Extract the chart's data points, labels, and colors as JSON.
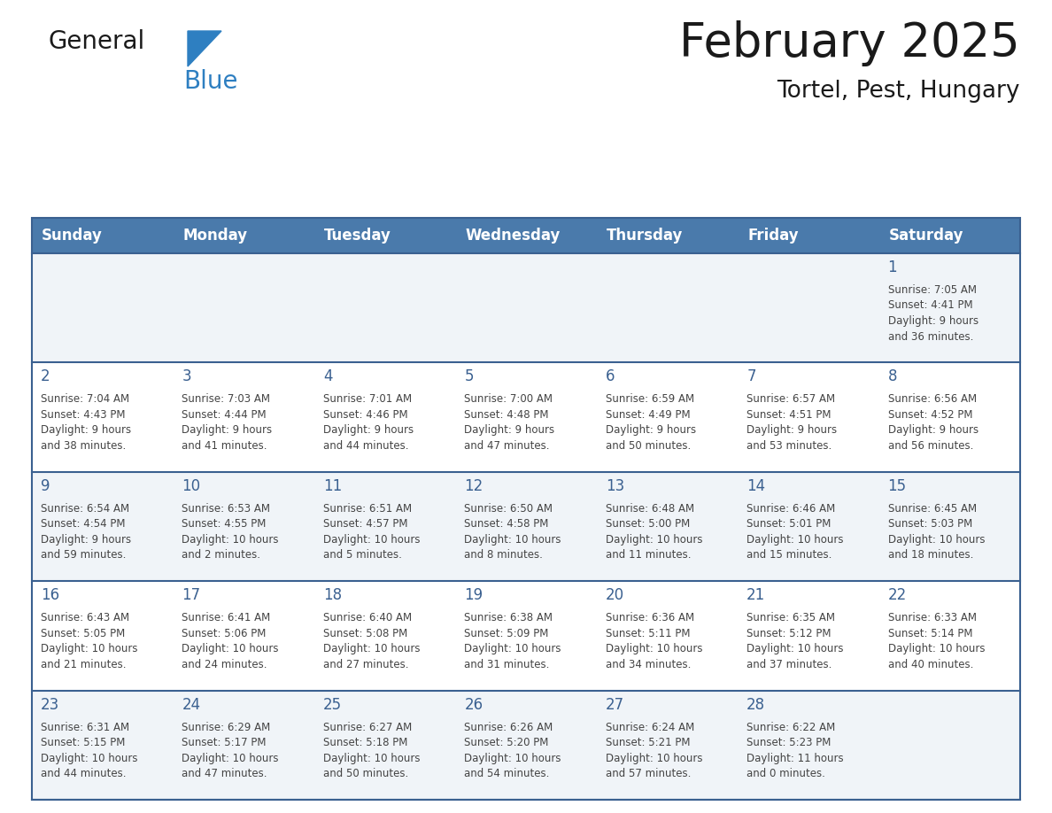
{
  "title": "February 2025",
  "subtitle": "Tortel, Pest, Hungary",
  "header_bg": "#4a7aab",
  "header_text_color": "#ffffff",
  "day_names": [
    "Sunday",
    "Monday",
    "Tuesday",
    "Wednesday",
    "Thursday",
    "Friday",
    "Saturday"
  ],
  "row_bg_light": "#f0f4f8",
  "row_bg_white": "#ffffff",
  "cell_border_color": "#3a6090",
  "day_number_color": "#3a6090",
  "text_color": "#444444",
  "logo_black": "#1a1a1a",
  "logo_blue": "#2e7fc1",
  "logo_triangle_color": "#2e7fc1",
  "weeks": [
    [
      {
        "day": null,
        "info": null
      },
      {
        "day": null,
        "info": null
      },
      {
        "day": null,
        "info": null
      },
      {
        "day": null,
        "info": null
      },
      {
        "day": null,
        "info": null
      },
      {
        "day": null,
        "info": null
      },
      {
        "day": 1,
        "info": "Sunrise: 7:05 AM\nSunset: 4:41 PM\nDaylight: 9 hours\nand 36 minutes."
      }
    ],
    [
      {
        "day": 2,
        "info": "Sunrise: 7:04 AM\nSunset: 4:43 PM\nDaylight: 9 hours\nand 38 minutes."
      },
      {
        "day": 3,
        "info": "Sunrise: 7:03 AM\nSunset: 4:44 PM\nDaylight: 9 hours\nand 41 minutes."
      },
      {
        "day": 4,
        "info": "Sunrise: 7:01 AM\nSunset: 4:46 PM\nDaylight: 9 hours\nand 44 minutes."
      },
      {
        "day": 5,
        "info": "Sunrise: 7:00 AM\nSunset: 4:48 PM\nDaylight: 9 hours\nand 47 minutes."
      },
      {
        "day": 6,
        "info": "Sunrise: 6:59 AM\nSunset: 4:49 PM\nDaylight: 9 hours\nand 50 minutes."
      },
      {
        "day": 7,
        "info": "Sunrise: 6:57 AM\nSunset: 4:51 PM\nDaylight: 9 hours\nand 53 minutes."
      },
      {
        "day": 8,
        "info": "Sunrise: 6:56 AM\nSunset: 4:52 PM\nDaylight: 9 hours\nand 56 minutes."
      }
    ],
    [
      {
        "day": 9,
        "info": "Sunrise: 6:54 AM\nSunset: 4:54 PM\nDaylight: 9 hours\nand 59 minutes."
      },
      {
        "day": 10,
        "info": "Sunrise: 6:53 AM\nSunset: 4:55 PM\nDaylight: 10 hours\nand 2 minutes."
      },
      {
        "day": 11,
        "info": "Sunrise: 6:51 AM\nSunset: 4:57 PM\nDaylight: 10 hours\nand 5 minutes."
      },
      {
        "day": 12,
        "info": "Sunrise: 6:50 AM\nSunset: 4:58 PM\nDaylight: 10 hours\nand 8 minutes."
      },
      {
        "day": 13,
        "info": "Sunrise: 6:48 AM\nSunset: 5:00 PM\nDaylight: 10 hours\nand 11 minutes."
      },
      {
        "day": 14,
        "info": "Sunrise: 6:46 AM\nSunset: 5:01 PM\nDaylight: 10 hours\nand 15 minutes."
      },
      {
        "day": 15,
        "info": "Sunrise: 6:45 AM\nSunset: 5:03 PM\nDaylight: 10 hours\nand 18 minutes."
      }
    ],
    [
      {
        "day": 16,
        "info": "Sunrise: 6:43 AM\nSunset: 5:05 PM\nDaylight: 10 hours\nand 21 minutes."
      },
      {
        "day": 17,
        "info": "Sunrise: 6:41 AM\nSunset: 5:06 PM\nDaylight: 10 hours\nand 24 minutes."
      },
      {
        "day": 18,
        "info": "Sunrise: 6:40 AM\nSunset: 5:08 PM\nDaylight: 10 hours\nand 27 minutes."
      },
      {
        "day": 19,
        "info": "Sunrise: 6:38 AM\nSunset: 5:09 PM\nDaylight: 10 hours\nand 31 minutes."
      },
      {
        "day": 20,
        "info": "Sunrise: 6:36 AM\nSunset: 5:11 PM\nDaylight: 10 hours\nand 34 minutes."
      },
      {
        "day": 21,
        "info": "Sunrise: 6:35 AM\nSunset: 5:12 PM\nDaylight: 10 hours\nand 37 minutes."
      },
      {
        "day": 22,
        "info": "Sunrise: 6:33 AM\nSunset: 5:14 PM\nDaylight: 10 hours\nand 40 minutes."
      }
    ],
    [
      {
        "day": 23,
        "info": "Sunrise: 6:31 AM\nSunset: 5:15 PM\nDaylight: 10 hours\nand 44 minutes."
      },
      {
        "day": 24,
        "info": "Sunrise: 6:29 AM\nSunset: 5:17 PM\nDaylight: 10 hours\nand 47 minutes."
      },
      {
        "day": 25,
        "info": "Sunrise: 6:27 AM\nSunset: 5:18 PM\nDaylight: 10 hours\nand 50 minutes."
      },
      {
        "day": 26,
        "info": "Sunrise: 6:26 AM\nSunset: 5:20 PM\nDaylight: 10 hours\nand 54 minutes."
      },
      {
        "day": 27,
        "info": "Sunrise: 6:24 AM\nSunset: 5:21 PM\nDaylight: 10 hours\nand 57 minutes."
      },
      {
        "day": 28,
        "info": "Sunrise: 6:22 AM\nSunset: 5:23 PM\nDaylight: 11 hours\nand 0 minutes."
      },
      {
        "day": null,
        "info": null
      }
    ]
  ]
}
